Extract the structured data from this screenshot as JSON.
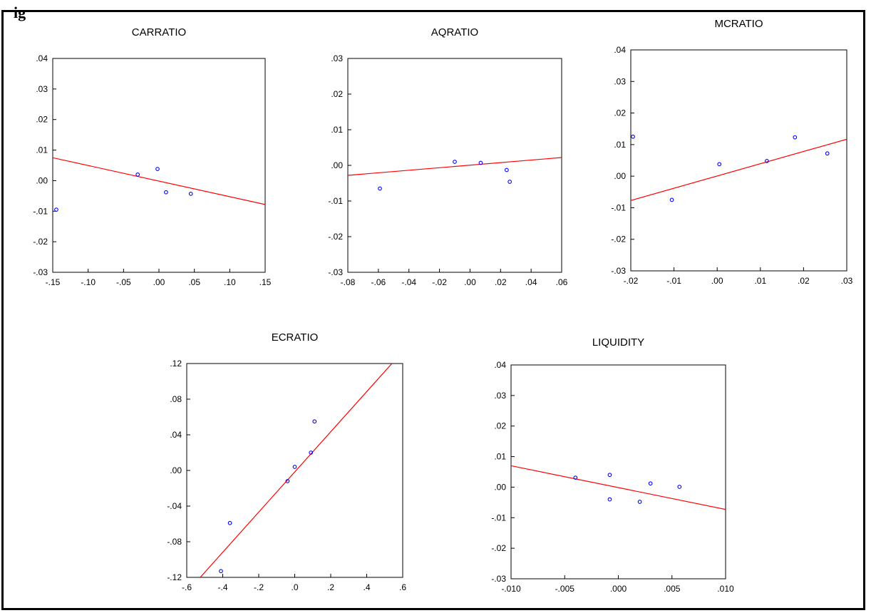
{
  "header": {
    "title": "ig"
  },
  "chart_data": [
    {
      "type": "scatter",
      "title": "CARRATIO",
      "xlim": [
        -0.15,
        0.15
      ],
      "ylim": [
        -0.03,
        0.04
      ],
      "xticks": [
        "-.15",
        "-.10",
        "-.05",
        ".00",
        ".05",
        ".10",
        ".15"
      ],
      "yticks": [
        ".04",
        ".03",
        ".02",
        ".01",
        ".00",
        "-.01",
        "-.02",
        "-.03"
      ],
      "points": [
        {
          "x": -0.145,
          "y": -0.0095
        },
        {
          "x": -0.03,
          "y": 0.002
        },
        {
          "x": -0.002,
          "y": 0.0038
        },
        {
          "x": 0.01,
          "y": -0.0038
        },
        {
          "x": 0.045,
          "y": -0.0043
        }
      ],
      "fit_line": {
        "x": [
          -0.15,
          0.15
        ],
        "y": [
          0.0075,
          -0.0078
        ]
      },
      "point_color": "#0000ff",
      "line_color": "#ff0000"
    },
    {
      "type": "scatter",
      "title": "AQRATIO",
      "xlim": [
        -0.08,
        0.06
      ],
      "ylim": [
        -0.03,
        0.03
      ],
      "xticks": [
        "-.08",
        "-.06",
        "-.04",
        "-.02",
        ".00",
        ".02",
        ".04",
        ".06"
      ],
      "yticks": [
        ".03",
        ".02",
        ".01",
        ".00",
        "-.01",
        "-.02",
        "-.03"
      ],
      "points": [
        {
          "x": -0.059,
          "y": -0.0065
        },
        {
          "x": -0.01,
          "y": 0.001
        },
        {
          "x": 0.007,
          "y": 0.0007
        },
        {
          "x": 0.024,
          "y": -0.0013
        },
        {
          "x": 0.026,
          "y": -0.0046
        }
      ],
      "fit_line": {
        "x": [
          -0.08,
          0.06
        ],
        "y": [
          -0.0028,
          0.0022
        ]
      },
      "point_color": "#0000ff",
      "line_color": "#ff0000"
    },
    {
      "type": "scatter",
      "title": "MCRATIO",
      "xlim": [
        -0.02,
        0.03
      ],
      "ylim": [
        -0.03,
        0.04
      ],
      "xticks": [
        "-.02",
        "-.01",
        ".00",
        ".01",
        ".02",
        ".03"
      ],
      "yticks": [
        ".04",
        ".03",
        ".02",
        ".01",
        ".00",
        "-.01",
        "-.02",
        "-.03"
      ],
      "points": [
        {
          "x": -0.0195,
          "y": 0.0125
        },
        {
          "x": -0.0105,
          "y": -0.0075
        },
        {
          "x": 0.0005,
          "y": 0.0038
        },
        {
          "x": 0.0115,
          "y": 0.0048
        },
        {
          "x": 0.018,
          "y": 0.0123
        },
        {
          "x": 0.0255,
          "y": 0.0072
        }
      ],
      "fit_line": {
        "x": [
          -0.02,
          0.03
        ],
        "y": [
          -0.0077,
          0.0117
        ]
      },
      "point_color": "#0000ff",
      "line_color": "#ff0000"
    },
    {
      "type": "scatter",
      "title": "ECRATIO",
      "xlim": [
        -0.6,
        0.6
      ],
      "ylim": [
        -0.12,
        0.12
      ],
      "xticks": [
        "-.6",
        "-.4",
        "-.2",
        ".0",
        ".2",
        ".4",
        ".6"
      ],
      "yticks": [
        ".12",
        ".08",
        ".04",
        ".00",
        "-.04",
        "-.08",
        "-.12"
      ],
      "points": [
        {
          "x": -0.41,
          "y": -0.113
        },
        {
          "x": -0.36,
          "y": -0.059
        },
        {
          "x": -0.04,
          "y": -0.012
        },
        {
          "x": 0.0,
          "y": 0.004
        },
        {
          "x": 0.09,
          "y": 0.02
        },
        {
          "x": 0.11,
          "y": 0.055
        }
      ],
      "fit_line": {
        "x": [
          -0.525,
          0.54
        ],
        "y": [
          -0.12,
          0.12
        ]
      },
      "point_color": "#0000ff",
      "line_color": "#ff0000"
    },
    {
      "type": "scatter",
      "title": "LIQUIDITY",
      "xlim": [
        -0.01,
        0.01
      ],
      "ylim": [
        -0.03,
        0.04
      ],
      "xticks": [
        "-.010",
        "-.005",
        ".000",
        ".005",
        ".010"
      ],
      "yticks": [
        ".04",
        ".03",
        ".02",
        ".01",
        ".00",
        "-.01",
        "-.02",
        "-.03"
      ],
      "points": [
        {
          "x": -0.004,
          "y": 0.0031
        },
        {
          "x": -0.0008,
          "y": 0.004
        },
        {
          "x": -0.0008,
          "y": -0.004
        },
        {
          "x": 0.002,
          "y": -0.0048
        },
        {
          "x": 0.003,
          "y": 0.0012
        },
        {
          "x": 0.0057,
          "y": 0.0001
        }
      ],
      "fit_line": {
        "x": [
          -0.01,
          0.01
        ],
        "y": [
          0.007,
          -0.0073
        ]
      },
      "point_color": "#0000ff",
      "line_color": "#ff0000"
    }
  ]
}
